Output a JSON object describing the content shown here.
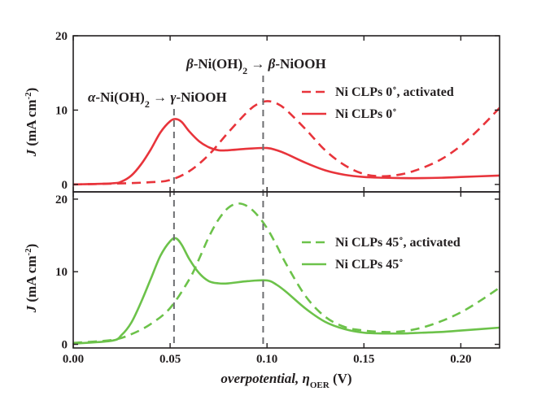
{
  "chart_data": {
    "type": "line",
    "shared_x_axis": {
      "label_parts": [
        "overpotential, ",
        "η",
        "OER",
        " (V)"
      ],
      "range": [
        0.0,
        0.22
      ],
      "ticks": [
        0.0,
        0.05,
        0.1,
        0.15,
        0.2
      ],
      "tick_labels": [
        "0.00",
        "0.05",
        "0.10",
        "0.15",
        "0.20"
      ]
    },
    "reference_lines_x": [
      0.052,
      0.098
    ],
    "annotations": [
      {
        "id": "alpha",
        "text": "α-Ni(OH)₂ → γ-NiOOH"
      },
      {
        "id": "beta",
        "text": "β-Ni(OH)₂ → β-NiOOH"
      }
    ],
    "panels": [
      {
        "id": "top",
        "ylabel": "J (mA cm⁻²)",
        "ylim": [
          -1,
          20
        ],
        "yticks": [
          0,
          10,
          20
        ],
        "ytick_labels": [
          "0",
          "10",
          "20"
        ],
        "color": "#e8343b",
        "legend_position": "top-right",
        "series": [
          {
            "name": "Ni CLPs 0˚, activated",
            "dash": true,
            "x": [
              0.0,
              0.02,
              0.04,
              0.05,
              0.06,
              0.07,
              0.08,
              0.09,
              0.095,
              0.1,
              0.105,
              0.11,
              0.12,
              0.13,
              0.14,
              0.15,
              0.16,
              0.17,
              0.18,
              0.19,
              0.2,
              0.21,
              0.22
            ],
            "y": [
              0.0,
              0.1,
              0.3,
              0.6,
              1.8,
              4.0,
              7.0,
              9.8,
              10.8,
              11.2,
              10.9,
              10.0,
              7.4,
              4.6,
              2.6,
              1.4,
              1.1,
              1.4,
              2.2,
              3.4,
              5.2,
              7.6,
              10.3
            ]
          },
          {
            "name": "Ni CLPs 0˚",
            "dash": false,
            "x": [
              0.0,
              0.02,
              0.025,
              0.03,
              0.035,
              0.04,
              0.045,
              0.05,
              0.053,
              0.056,
              0.06,
              0.065,
              0.07,
              0.075,
              0.08,
              0.09,
              0.1,
              0.105,
              0.11,
              0.12,
              0.13,
              0.14,
              0.15,
              0.16,
              0.17,
              0.18,
              0.19,
              0.2,
              0.22
            ],
            "y": [
              0.0,
              0.15,
              0.4,
              1.2,
              2.7,
              4.7,
              7.0,
              8.5,
              8.8,
              8.4,
              7.1,
              5.8,
              5.0,
              4.6,
              4.6,
              4.8,
              4.9,
              4.6,
              4.1,
              2.9,
              1.9,
              1.3,
              1.0,
              0.9,
              0.85,
              0.85,
              0.9,
              1.0,
              1.2
            ]
          }
        ]
      },
      {
        "id": "bottom",
        "ylabel": "J (mA cm⁻²)",
        "ylim": [
          -0.5,
          21
        ],
        "yticks": [
          0,
          10,
          20
        ],
        "ytick_labels": [
          "0",
          "10",
          "20"
        ],
        "color": "#6cc24a",
        "legend_position": "middle-right",
        "series": [
          {
            "name": "Ni CLPs 45˚, activated",
            "dash": true,
            "x": [
              0.0,
              0.02,
              0.03,
              0.04,
              0.05,
              0.06,
              0.065,
              0.07,
              0.075,
              0.08,
              0.085,
              0.09,
              0.095,
              0.1,
              0.105,
              0.11,
              0.12,
              0.13,
              0.14,
              0.15,
              0.16,
              0.17,
              0.18,
              0.19,
              0.2,
              0.21,
              0.22
            ],
            "y": [
              0.2,
              0.6,
              1.4,
              2.8,
              5.0,
              9.0,
              11.8,
              14.8,
              17.2,
              18.8,
              19.4,
              19.0,
              17.8,
              16.0,
              13.6,
              11.0,
              6.6,
              3.8,
              2.4,
              1.9,
              1.7,
              1.8,
              2.3,
              3.2,
              4.4,
              6.0,
              7.8
            ]
          },
          {
            "name": "Ni CLPs 45˚",
            "dash": false,
            "x": [
              0.0,
              0.02,
              0.025,
              0.03,
              0.035,
              0.04,
              0.045,
              0.05,
              0.053,
              0.056,
              0.06,
              0.065,
              0.07,
              0.075,
              0.08,
              0.09,
              0.1,
              0.105,
              0.11,
              0.12,
              0.13,
              0.14,
              0.15,
              0.16,
              0.17,
              0.18,
              0.19,
              0.2,
              0.22
            ],
            "y": [
              0.1,
              0.5,
              1.3,
              3.0,
              5.8,
              9.0,
              12.2,
              14.2,
              14.6,
              13.7,
              11.7,
              9.8,
              8.7,
              8.4,
              8.4,
              8.7,
              8.8,
              8.2,
              7.2,
              4.9,
              3.1,
              2.1,
              1.6,
              1.5,
              1.5,
              1.6,
              1.7,
              1.9,
              2.3
            ]
          }
        ]
      }
    ]
  }
}
